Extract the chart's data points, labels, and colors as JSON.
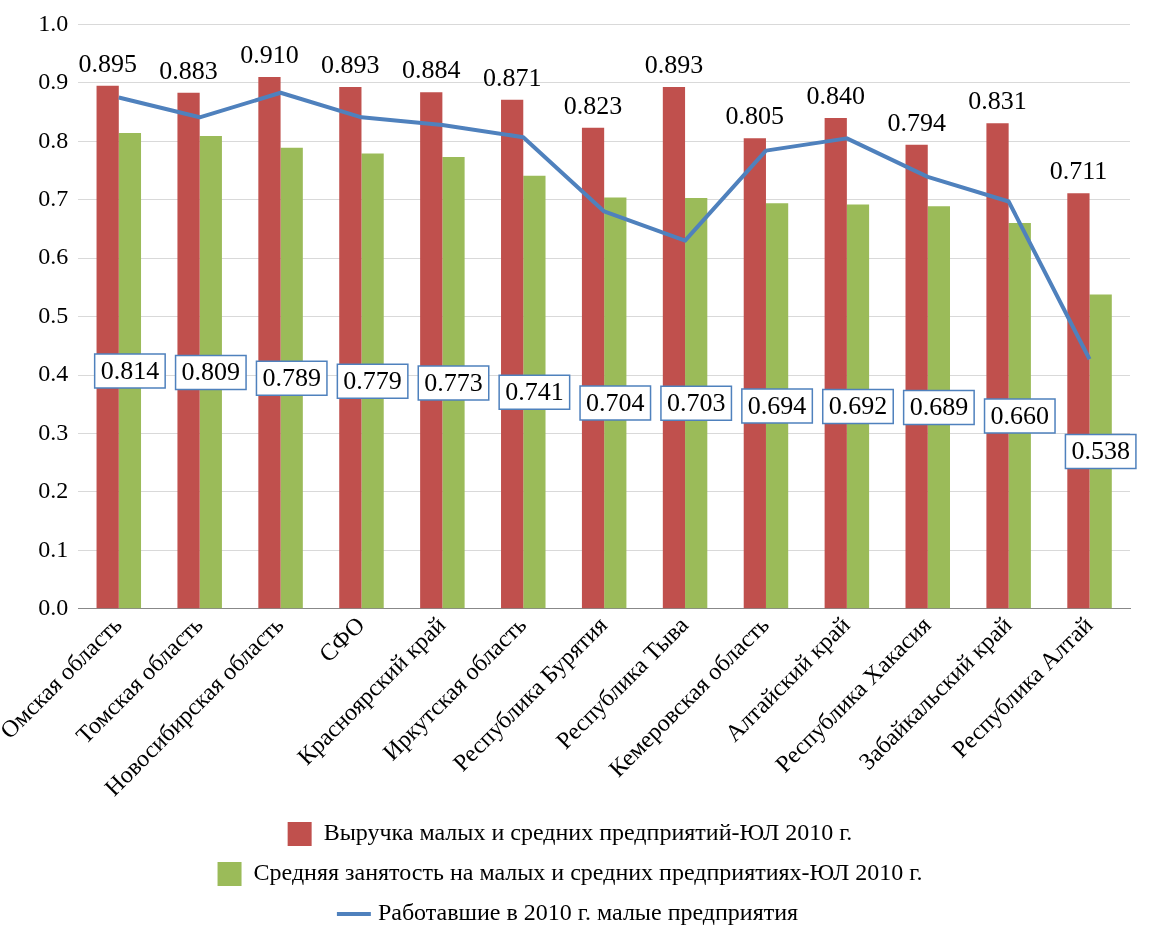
{
  "chart_data": {
    "type": "bar",
    "categories": [
      "Омская область",
      "Томская область",
      "Новосибирская область",
      "СФО",
      "Красноярский край",
      "Иркутская область",
      "Республика Бурятия",
      "Республика Тыва",
      "Кемеровская область",
      "Алтайский край",
      "Республика Хакасия",
      "Забайкальский край",
      "Республика Алтай"
    ],
    "series": [
      {
        "name": "Выручка малых и средних предприятий-ЮЛ 2010 г.",
        "color": "#c0504d",
        "values": [
          0.895,
          0.883,
          0.91,
          0.893,
          0.884,
          0.871,
          0.823,
          0.893,
          0.805,
          0.84,
          0.794,
          0.831,
          0.711
        ],
        "value_labels": [
          "0.895",
          "0.883",
          "0.910",
          "0.893",
          "0.884",
          "0.871",
          "0.823",
          "0.893",
          "0.805",
          "0.840",
          "0.794",
          "0.831",
          "0.711"
        ]
      },
      {
        "name": "Средняя занятость на малых и средних предприятиях-ЮЛ 2010 г.",
        "color": "#9bbb59",
        "values": [
          0.814,
          0.809,
          0.789,
          0.779,
          0.773,
          0.741,
          0.704,
          0.703,
          0.694,
          0.692,
          0.689,
          0.66,
          0.538
        ],
        "value_labels": [
          "0.814",
          "0.809",
          "0.789",
          "0.779",
          "0.773",
          "0.741",
          "0.704",
          "0.703",
          "0.694",
          "0.692",
          "0.689",
          "0.660",
          "0.538"
        ]
      },
      {
        "name": "Работавшие в 2010 г. малые предприятия",
        "type": "line",
        "color": "#4f81bd",
        "values": [
          0.875,
          0.841,
          0.883,
          0.841,
          0.828,
          0.807,
          0.68,
          0.63,
          0.784,
          0.805,
          0.739,
          0.697,
          0.427
        ]
      }
    ],
    "ylim": [
      0,
      1
    ],
    "yticks": [
      {
        "value": 0,
        "label": "0.0"
      },
      0.1,
      0.2,
      0.3,
      0.4,
      0.5,
      0.6,
      0.7,
      0.8,
      0.9,
      {
        "value": 1,
        "label": "1.0"
      }
    ],
    "grid": "y",
    "legend": "bottom",
    "marker": "none"
  }
}
